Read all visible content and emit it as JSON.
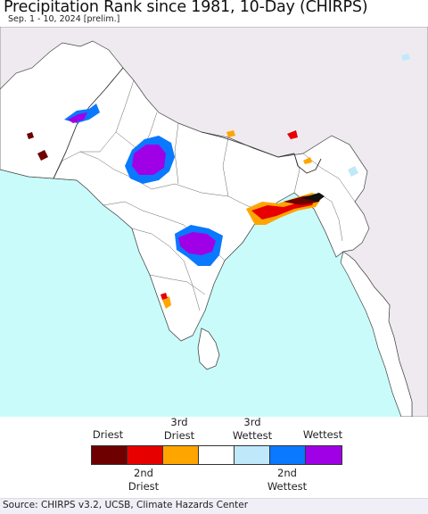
{
  "title": "Precipitation Rank since 1981, 10-Day (CHIRPS)",
  "subtitle": "Sep. 1 - 10, 2024 [prelim.]",
  "legend": {
    "top_labels": [
      {
        "text": "Driest",
        "color": "#6e0000"
      },
      {
        "text": "3rd\nDriest",
        "color": "#ffa500"
      },
      {
        "text": "3rd\nWettest",
        "color": "#bfe9fb"
      },
      {
        "text": "Wettest",
        "color": "#a000e6"
      }
    ],
    "bottom_labels": [
      {
        "text": "2nd\nDriest",
        "color": "#e60000"
      },
      {
        "text": "2nd\nWettest",
        "color": "#0a78ff"
      }
    ],
    "swatches": [
      {
        "name": "driest",
        "color": "#6e0000"
      },
      {
        "name": "2nd-driest",
        "color": "#e60000"
      },
      {
        "name": "3rd-driest",
        "color": "#ffa500"
      },
      {
        "name": "normal",
        "color": "#ffffff"
      },
      {
        "name": "3rd-wettest",
        "color": "#bfe9fb"
      },
      {
        "name": "2nd-wettest",
        "color": "#0a78ff"
      },
      {
        "name": "wettest",
        "color": "#a000e6"
      }
    ]
  },
  "source": "Source: CHIRPS v3.2, UCSB, Climate Hazards Center"
}
